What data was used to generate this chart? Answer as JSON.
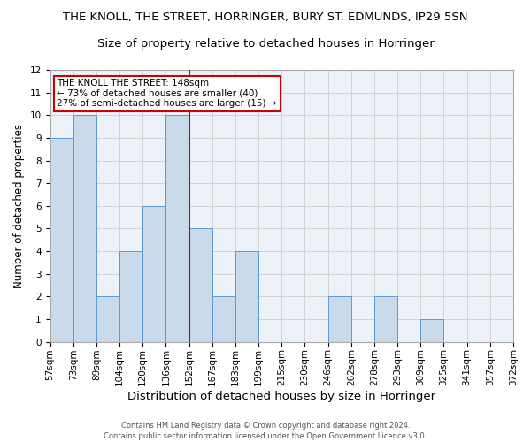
{
  "title1": "THE KNOLL, THE STREET, HORRINGER, BURY ST. EDMUNDS, IP29 5SN",
  "title2": "Size of property relative to detached houses in Horringer",
  "xlabel": "Distribution of detached houses by size in Horringer",
  "ylabel": "Number of detached properties",
  "footer1": "Contains HM Land Registry data © Crown copyright and database right 2024.",
  "footer2": "Contains public sector information licensed under the Open Government Licence v3.0.",
  "bins": [
    "57sqm",
    "73sqm",
    "89sqm",
    "104sqm",
    "120sqm",
    "136sqm",
    "152sqm",
    "167sqm",
    "183sqm",
    "199sqm",
    "215sqm",
    "230sqm",
    "246sqm",
    "262sqm",
    "278sqm",
    "293sqm",
    "309sqm",
    "325sqm",
    "341sqm",
    "357sqm",
    "372sqm"
  ],
  "values": [
    9,
    10,
    2,
    4,
    6,
    10,
    5,
    2,
    4,
    0,
    0,
    0,
    2,
    0,
    2,
    0,
    1,
    0,
    0,
    0
  ],
  "bar_color": "#c9daea",
  "bar_edge_color": "#5b9bd5",
  "vline_x": 6,
  "vline_color": "#cc0000",
  "annotation_text": "THE KNOLL THE STREET: 148sqm\n← 73% of detached houses are smaller (40)\n27% of semi-detached houses are larger (15) →",
  "annotation_box_color": "white",
  "annotation_box_edge_color": "#cc0000",
  "ylim": [
    0,
    12
  ],
  "yticks": [
    0,
    1,
    2,
    3,
    4,
    5,
    6,
    7,
    8,
    9,
    10,
    11,
    12
  ],
  "grid_color": "#d3d3d3",
  "bg_color": "#edf2f9",
  "title1_fontsize": 9.5,
  "title2_fontsize": 9.5,
  "xlabel_fontsize": 9.5,
  "ylabel_fontsize": 8.5,
  "tick_fontsize": 7.5,
  "annotation_fontsize": 7.5,
  "footer_fontsize": 6.0
}
